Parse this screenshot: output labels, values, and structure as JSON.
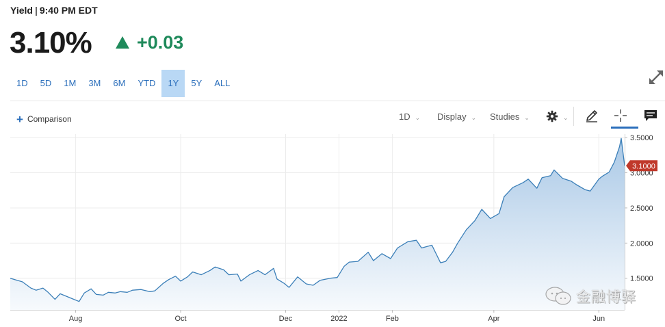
{
  "header": {
    "label": "Yield",
    "time": "9:40 PM EDT",
    "price": "3.10%",
    "change": "+0.03",
    "change_direction": "up",
    "up_color": "#1f8a5b"
  },
  "range_tabs": [
    {
      "label": "1D",
      "active": false
    },
    {
      "label": "5D",
      "active": false
    },
    {
      "label": "1M",
      "active": false
    },
    {
      "label": "3M",
      "active": false
    },
    {
      "label": "6M",
      "active": false
    },
    {
      "label": "YTD",
      "active": false
    },
    {
      "label": "1Y",
      "active": true
    },
    {
      "label": "5Y",
      "active": false
    },
    {
      "label": "ALL",
      "active": false
    }
  ],
  "toolbar": {
    "comparison_label": "Comparison",
    "interval_label": "1D",
    "display_label": "Display",
    "studies_label": "Studies",
    "accent_color": "#2a6ebb"
  },
  "icons": {
    "expand": "expand-arrows-icon",
    "settings": "gear-icon",
    "draw": "pencil-icon",
    "crosshair": "crosshair-icon",
    "comment": "comment-icon",
    "trend": "triangle-up-icon"
  },
  "chart_data": {
    "type": "area",
    "title": "",
    "xlabel": "",
    "ylabel": "",
    "y_axis_side": "right",
    "ylim": [
      1.05,
      3.55
    ],
    "yticks": [
      3.5,
      3.0,
      2.5,
      2.0,
      1.5
    ],
    "ytick_labels": [
      "3.5000",
      "3.0000",
      "2.5000",
      "2.0000",
      "1.5000"
    ],
    "xticks": [
      {
        "date": "2021-08-01",
        "label": "Aug"
      },
      {
        "date": "2021-10-01",
        "label": "Oct"
      },
      {
        "date": "2021-12-01",
        "label": "Dec"
      },
      {
        "date": "2022-01-01",
        "label": "2022"
      },
      {
        "date": "2022-02-01",
        "label": "Feb"
      },
      {
        "date": "2022-04-01",
        "label": "Apr"
      },
      {
        "date": "2022-06-01",
        "label": "Jun"
      }
    ],
    "x_range": [
      "2021-06-24",
      "2022-06-16"
    ],
    "grid": true,
    "line_color": "#3b7fb8",
    "fill_color_top": "#a9c8e6",
    "fill_color_bottom": "#f7fafd",
    "last_value": 3.1,
    "last_value_label": "3.1000",
    "last_value_color": "#c0392b",
    "series": [
      {
        "x": [
          "2021-06-24",
          "2021-06-28",
          "2021-07-01",
          "2021-07-06",
          "2021-07-09",
          "2021-07-13",
          "2021-07-16",
          "2021-07-20",
          "2021-07-23",
          "2021-07-27",
          "2021-07-30",
          "2021-08-03",
          "2021-08-06",
          "2021-08-10",
          "2021-08-13",
          "2021-08-17",
          "2021-08-20",
          "2021-08-24",
          "2021-08-27",
          "2021-08-31",
          "2021-09-03",
          "2021-09-08",
          "2021-09-13",
          "2021-09-16",
          "2021-09-21",
          "2021-09-24",
          "2021-09-28",
          "2021-10-01",
          "2021-10-05",
          "2021-10-08",
          "2021-10-13",
          "2021-10-18",
          "2021-10-21",
          "2021-10-26",
          "2021-10-29",
          "2021-11-03",
          "2021-11-05",
          "2021-11-10",
          "2021-11-15",
          "2021-11-19",
          "2021-11-24",
          "2021-11-26",
          "2021-11-30",
          "2021-12-03",
          "2021-12-08",
          "2021-12-13",
          "2021-12-17",
          "2021-12-21",
          "2021-12-27",
          "2021-12-31",
          "2022-01-04",
          "2022-01-07",
          "2022-01-12",
          "2022-01-18",
          "2022-01-21",
          "2022-01-26",
          "2022-01-31",
          "2022-02-04",
          "2022-02-10",
          "2022-02-15",
          "2022-02-18",
          "2022-02-24",
          "2022-03-01",
          "2022-03-04",
          "2022-03-08",
          "2022-03-11",
          "2022-03-16",
          "2022-03-21",
          "2022-03-25",
          "2022-03-30",
          "2022-04-04",
          "2022-04-07",
          "2022-04-12",
          "2022-04-18",
          "2022-04-21",
          "2022-04-26",
          "2022-04-29",
          "2022-05-04",
          "2022-05-06",
          "2022-05-11",
          "2022-05-16",
          "2022-05-19",
          "2022-05-24",
          "2022-05-27",
          "2022-06-01",
          "2022-06-03",
          "2022-06-07",
          "2022-06-10",
          "2022-06-13",
          "2022-06-14",
          "2022-06-16"
        ],
        "y": [
          1.5,
          1.47,
          1.45,
          1.36,
          1.33,
          1.36,
          1.3,
          1.2,
          1.28,
          1.24,
          1.21,
          1.17,
          1.29,
          1.35,
          1.27,
          1.26,
          1.3,
          1.29,
          1.31,
          1.3,
          1.33,
          1.34,
          1.31,
          1.32,
          1.43,
          1.48,
          1.53,
          1.46,
          1.52,
          1.59,
          1.55,
          1.61,
          1.66,
          1.62,
          1.55,
          1.56,
          1.46,
          1.55,
          1.61,
          1.55,
          1.64,
          1.49,
          1.43,
          1.37,
          1.52,
          1.42,
          1.4,
          1.47,
          1.5,
          1.51,
          1.67,
          1.73,
          1.74,
          1.87,
          1.75,
          1.85,
          1.78,
          1.93,
          2.02,
          2.04,
          1.93,
          1.97,
          1.72,
          1.74,
          1.87,
          2.0,
          2.19,
          2.32,
          2.48,
          2.35,
          2.42,
          2.66,
          2.79,
          2.86,
          2.91,
          2.78,
          2.93,
          2.96,
          3.04,
          2.92,
          2.88,
          2.83,
          2.76,
          2.74,
          2.91,
          2.95,
          3.01,
          3.15,
          3.37,
          3.49,
          3.1
        ]
      }
    ]
  }
}
